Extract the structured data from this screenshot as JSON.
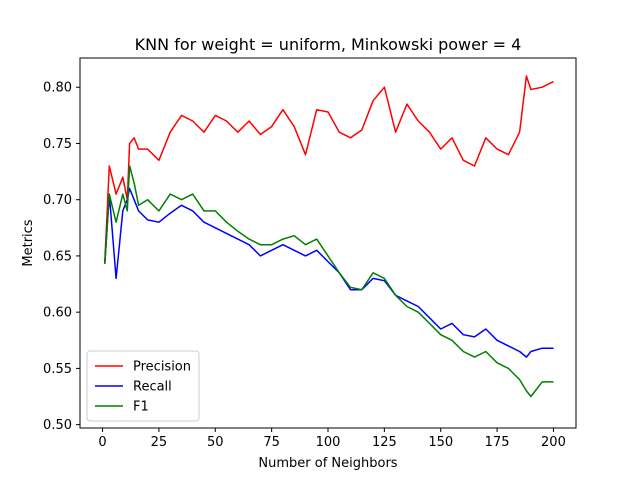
{
  "chart_data": {
    "type": "line",
    "title": "KNN for weight = uniform, Minkowski power = 4",
    "xlabel": "Number of Neighbors",
    "ylabel": "Metrics",
    "xlim": [
      -10,
      210
    ],
    "ylim": [
      0.497,
      0.826
    ],
    "xticks": [
      0,
      25,
      50,
      75,
      100,
      125,
      150,
      175,
      200
    ],
    "yticks": [
      0.5,
      0.55,
      0.6,
      0.65,
      0.7,
      0.75,
      0.8
    ],
    "grid": false,
    "legend_position": "lower-left",
    "x": [
      1,
      3,
      6,
      9,
      11,
      12,
      14,
      16,
      20,
      25,
      30,
      35,
      40,
      45,
      50,
      55,
      60,
      65,
      70,
      75,
      80,
      85,
      90,
      95,
      100,
      105,
      110,
      115,
      120,
      125,
      130,
      135,
      140,
      145,
      150,
      155,
      160,
      165,
      170,
      175,
      180,
      185,
      188,
      190,
      195,
      200
    ],
    "series": [
      {
        "name": "Precision",
        "color": "#ff0000",
        "values": [
          0.645,
          0.73,
          0.705,
          0.72,
          0.7,
          0.75,
          0.755,
          0.745,
          0.745,
          0.735,
          0.76,
          0.775,
          0.77,
          0.76,
          0.775,
          0.77,
          0.76,
          0.77,
          0.758,
          0.765,
          0.78,
          0.765,
          0.74,
          0.78,
          0.778,
          0.76,
          0.755,
          0.762,
          0.788,
          0.8,
          0.76,
          0.785,
          0.77,
          0.76,
          0.745,
          0.755,
          0.735,
          0.73,
          0.755,
          0.745,
          0.74,
          0.76,
          0.81,
          0.798,
          0.8,
          0.805
        ]
      },
      {
        "name": "Recall",
        "color": "#0000ff",
        "values": [
          0.643,
          0.705,
          0.63,
          0.69,
          0.7,
          0.71,
          0.7,
          0.69,
          0.682,
          0.68,
          0.688,
          0.695,
          0.69,
          0.68,
          0.675,
          0.67,
          0.665,
          0.66,
          0.65,
          0.655,
          0.66,
          0.655,
          0.65,
          0.655,
          0.645,
          0.635,
          0.62,
          0.62,
          0.63,
          0.628,
          0.615,
          0.61,
          0.605,
          0.595,
          0.585,
          0.59,
          0.58,
          0.578,
          0.585,
          0.575,
          0.57,
          0.565,
          0.56,
          0.565,
          0.568,
          0.568
        ]
      },
      {
        "name": "F1",
        "color": "#008000",
        "values": [
          0.643,
          0.705,
          0.68,
          0.705,
          0.69,
          0.73,
          0.715,
          0.695,
          0.7,
          0.69,
          0.705,
          0.7,
          0.705,
          0.69,
          0.69,
          0.68,
          0.672,
          0.665,
          0.66,
          0.66,
          0.665,
          0.668,
          0.66,
          0.665,
          0.65,
          0.635,
          0.622,
          0.62,
          0.635,
          0.63,
          0.615,
          0.605,
          0.6,
          0.59,
          0.58,
          0.575,
          0.565,
          0.56,
          0.565,
          0.555,
          0.55,
          0.54,
          0.53,
          0.525,
          0.538,
          0.538
        ]
      }
    ]
  }
}
